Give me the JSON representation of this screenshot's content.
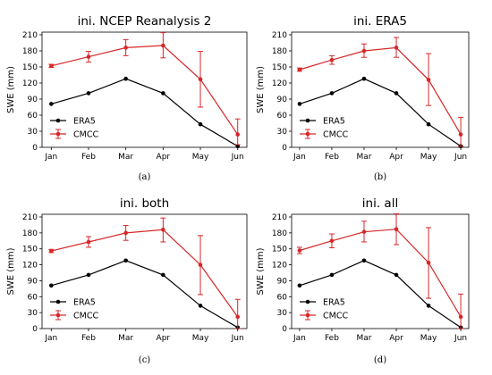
{
  "colors": {
    "era5": "#000000",
    "cmcc": "#d62728"
  },
  "chart_data": [
    {
      "type": "line",
      "title": "ini. NCEP Reanalysis 2",
      "caption": "(a)",
      "ylabel": "SWE (mm)",
      "categories": [
        "Jan",
        "Feb",
        "Mar",
        "Apr",
        "May",
        "Jun"
      ],
      "yticks": [
        "0",
        "30",
        "60",
        "90",
        "120",
        "150",
        "180",
        "210"
      ],
      "ylim": [
        0,
        210
      ],
      "series": [
        {
          "name": "ERA5",
          "color": "#000000",
          "values": [
            81,
            101,
            128,
            101,
            43,
            2
          ]
        },
        {
          "name": "CMCC",
          "color": "#d62728",
          "values": [
            152,
            169,
            186,
            190,
            127,
            24
          ],
          "err_low": [
            149,
            159,
            171,
            167,
            75,
            5
          ],
          "err_high": [
            155,
            179,
            201,
            214,
            179,
            53
          ]
        }
      ]
    },
    {
      "type": "line",
      "title": "ini. ERA5",
      "caption": "(b)",
      "ylabel": "SWE (mm)",
      "categories": [
        "Jan",
        "Feb",
        "Mar",
        "Apr",
        "May",
        "Jun"
      ],
      "yticks": [
        "0",
        "30",
        "60",
        "90",
        "120",
        "150",
        "180",
        "210"
      ],
      "ylim": [
        0,
        210
      ],
      "series": [
        {
          "name": "ERA5",
          "color": "#000000",
          "values": [
            81,
            101,
            128,
            101,
            43,
            2
          ]
        },
        {
          "name": "CMCC",
          "color": "#d62728",
          "values": [
            145,
            163,
            180,
            186,
            126,
            24
          ],
          "err_low": [
            142,
            155,
            168,
            168,
            78,
            2
          ],
          "err_high": [
            148,
            171,
            193,
            205,
            175,
            56
          ]
        }
      ]
    },
    {
      "type": "line",
      "title": "ini. both",
      "caption": "(c)",
      "ylabel": "SWE (mm)",
      "categories": [
        "Jan",
        "Feb",
        "Mar",
        "Apr",
        "May",
        "Jun"
      ],
      "yticks": [
        "0",
        "30",
        "60",
        "90",
        "120",
        "150",
        "180",
        "210"
      ],
      "ylim": [
        0,
        210
      ],
      "series": [
        {
          "name": "ERA5",
          "color": "#000000",
          "values": [
            81,
            101,
            128,
            101,
            43,
            2
          ]
        },
        {
          "name": "CMCC",
          "color": "#d62728",
          "values": [
            146,
            163,
            180,
            186,
            120,
            22
          ],
          "err_low": [
            143,
            153,
            166,
            163,
            64,
            0
          ],
          "err_high": [
            149,
            173,
            194,
            208,
            175,
            55
          ]
        }
      ]
    },
    {
      "type": "line",
      "title": "ini. all",
      "caption": "(d)",
      "ylabel": "SWE (mm)",
      "categories": [
        "Jan",
        "Feb",
        "Mar",
        "Apr",
        "May",
        "Jun"
      ],
      "yticks": [
        "0",
        "30",
        "60",
        "90",
        "120",
        "150",
        "180",
        "210"
      ],
      "ylim": [
        0,
        210
      ],
      "series": [
        {
          "name": "ERA5",
          "color": "#000000",
          "values": [
            81,
            101,
            128,
            101,
            43,
            2
          ]
        },
        {
          "name": "CMCC",
          "color": "#d62728",
          "values": [
            147,
            165,
            182,
            187,
            124,
            22
          ],
          "err_low": [
            141,
            152,
            163,
            158,
            57,
            0
          ],
          "err_high": [
            153,
            178,
            202,
            216,
            190,
            65
          ]
        }
      ]
    }
  ]
}
